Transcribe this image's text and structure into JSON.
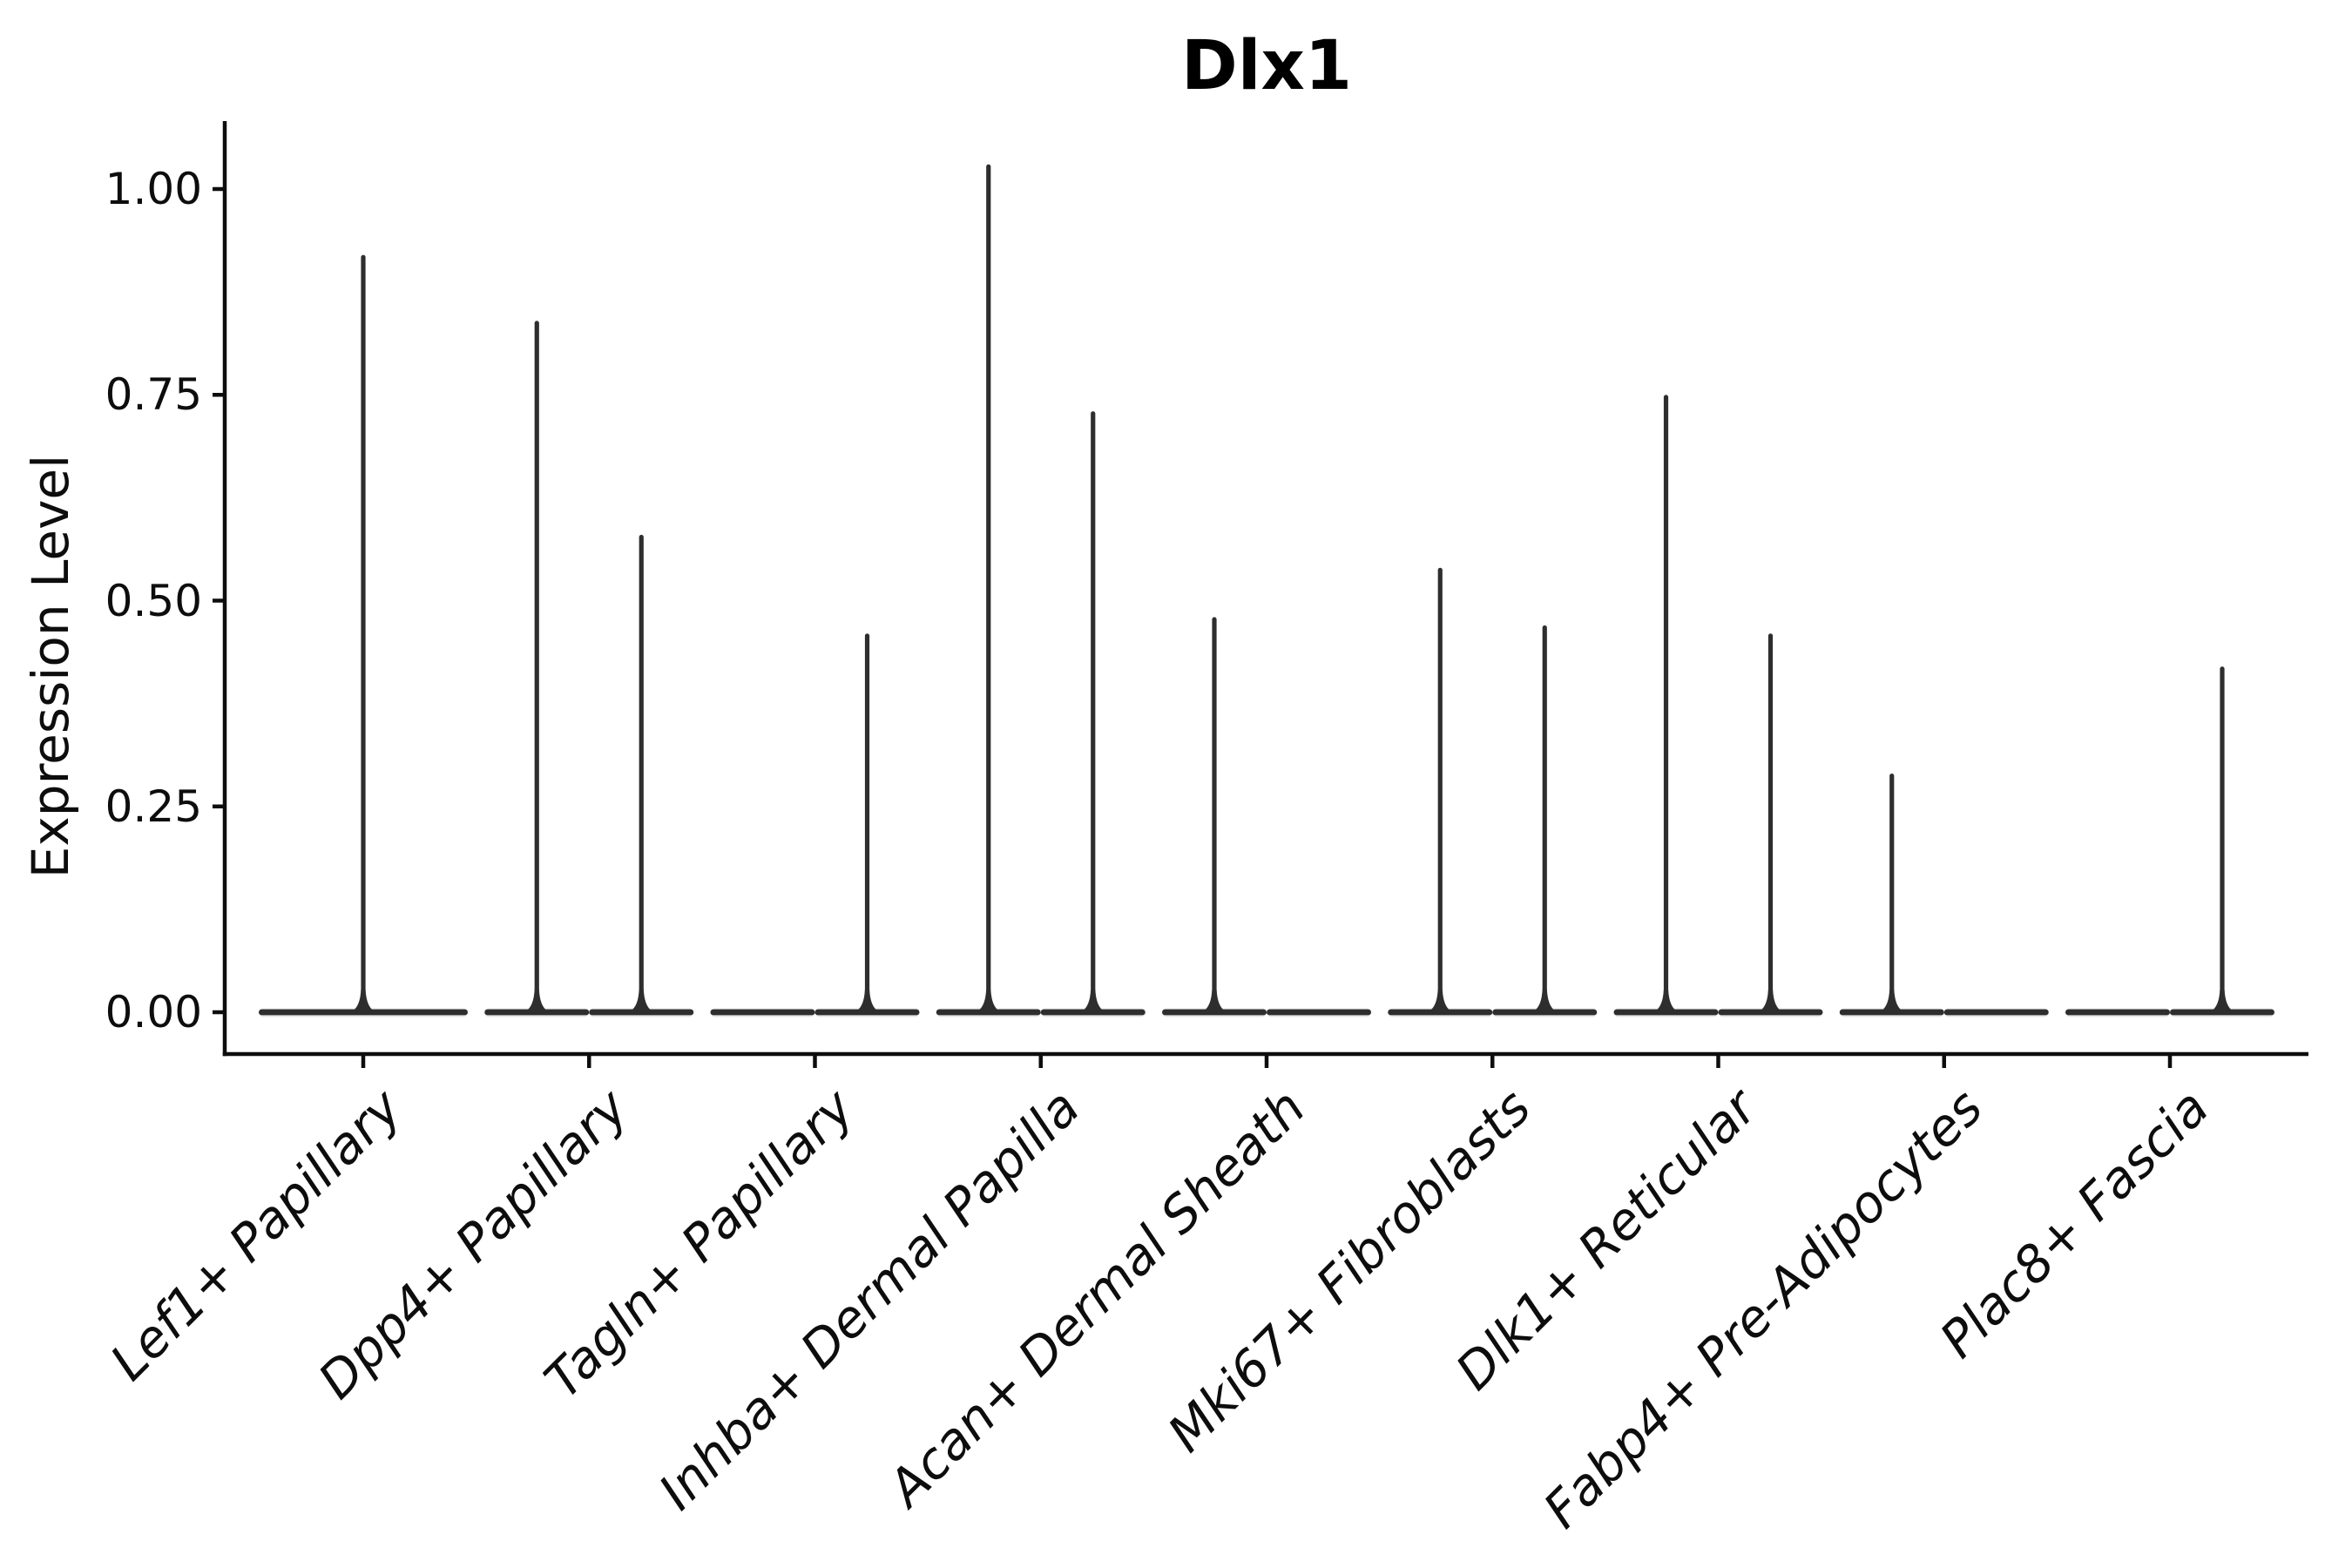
{
  "chart_data": {
    "type": "violin",
    "title": "Dlx1",
    "ylabel": "Expression Level",
    "xlabel": "",
    "grid": false,
    "legend_position": "none",
    "ylim": [
      -0.05,
      1.08
    ],
    "y_ticks": [
      {
        "label": "0.00",
        "value": 0.0
      },
      {
        "label": "0.25",
        "value": 0.25
      },
      {
        "label": "0.50",
        "value": 0.5
      },
      {
        "label": "0.75",
        "value": 0.75
      },
      {
        "label": "1.00",
        "value": 1.0
      }
    ],
    "categories": [
      "Lef1+ Papillary",
      "Dpp4+ Papillary",
      "Tagln+ Papillary",
      "Inhba+ Dermal Papilla",
      "Acan+ Dermal Sheath",
      "Mki67+ Fibroblasts",
      "Dlk1+ Reticular",
      "Fabp4+ Pre-Adipocytes",
      "Plac8+ Fascia"
    ],
    "series": [
      {
        "category": "Lef1+ Papillary",
        "violins": [
          {
            "position": "center",
            "max": 0.92
          }
        ]
      },
      {
        "category": "Dpp4+ Papillary",
        "violins": [
          {
            "position": "left",
            "max": 0.84
          },
          {
            "position": "right",
            "max": 0.58
          }
        ]
      },
      {
        "category": "Tagln+ Papillary",
        "violins": [
          {
            "position": "left",
            "max": 0.0
          },
          {
            "position": "right",
            "max": 0.46
          }
        ]
      },
      {
        "category": "Inhba+ Dermal Papilla",
        "violins": [
          {
            "position": "left",
            "max": 1.03
          },
          {
            "position": "right",
            "max": 0.73
          }
        ]
      },
      {
        "category": "Acan+ Dermal Sheath",
        "violins": [
          {
            "position": "left",
            "max": 0.48
          },
          {
            "position": "right",
            "max": 0.0
          }
        ]
      },
      {
        "category": "Mki67+ Fibroblasts",
        "violins": [
          {
            "position": "left",
            "max": 0.54
          },
          {
            "position": "right",
            "max": 0.47
          }
        ]
      },
      {
        "category": "Dlk1+ Reticular",
        "violins": [
          {
            "position": "left",
            "max": 0.75
          },
          {
            "position": "right",
            "max": 0.46
          }
        ]
      },
      {
        "category": "Fabp4+ Pre-Adipocytes",
        "violins": [
          {
            "position": "left",
            "max": 0.29
          },
          {
            "position": "right",
            "max": 0.0
          }
        ]
      },
      {
        "category": "Plac8+ Fascia",
        "violins": [
          {
            "position": "left",
            "max": 0.0
          },
          {
            "position": "right",
            "max": 0.42
          }
        ]
      }
    ],
    "colors": {
      "violin_stroke": "#2e2e2e",
      "violin_fill": "#cfcfcf",
      "axis": "#0d0d0d",
      "text": "#0d0d0d",
      "background": "#ffffff"
    }
  }
}
